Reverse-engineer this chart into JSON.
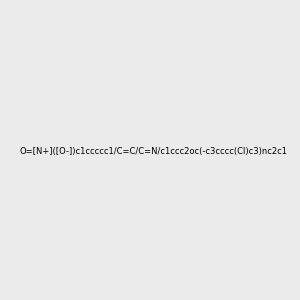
{
  "smiles": "O=[N+]([O-])c1ccccc1/C=C/C=N/c1ccc2oc(-c3cccc(Cl)c3)nc2c1",
  "background_color": "#ebebeb",
  "figsize": [
    3.0,
    3.0
  ],
  "dpi": 100,
  "img_size": [
    300,
    300
  ]
}
